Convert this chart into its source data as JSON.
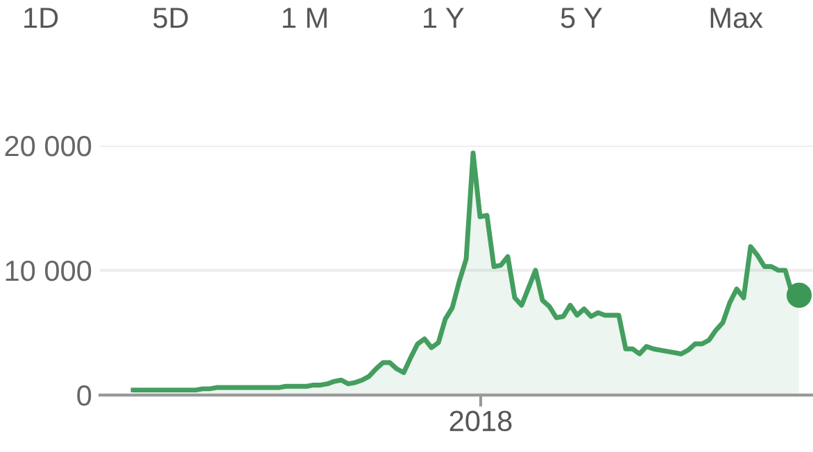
{
  "chart_data": {
    "type": "area",
    "annotations": [
      "1D",
      "5D",
      "1 M",
      "1 Y",
      "5 Y",
      "Max",
      "2018"
    ],
    "categories": [
      null,
      null,
      null,
      null,
      null,
      null,
      null,
      null,
      null,
      null,
      null,
      null,
      null,
      null,
      null,
      null,
      null,
      null,
      null,
      null,
      null,
      null,
      null,
      null,
      null,
      null,
      null,
      null,
      null,
      null,
      null,
      null,
      null,
      null,
      null,
      null,
      null,
      null,
      null,
      null,
      null,
      null,
      null,
      null,
      null,
      null,
      null,
      null,
      null,
      null,
      null,
      null,
      null,
      null,
      null,
      null,
      null,
      null,
      null,
      null,
      null,
      null,
      null,
      null,
      null,
      null,
      null,
      null,
      null,
      null,
      null,
      null,
      null,
      null,
      null,
      null,
      null,
      null,
      null,
      null,
      null,
      null,
      null,
      null,
      null,
      null,
      null,
      null,
      null,
      null,
      null,
      null,
      null,
      null,
      null,
      null,
      null
    ],
    "ylim": [
      0,
      20000
    ],
    "yticks": [
      {
        "value": 0,
        "label": "0"
      },
      {
        "value": 10000,
        "label": "10 000"
      },
      {
        "value": 20000,
        "label": "20 000"
      }
    ],
    "grid": "y",
    "series": [
      {
        "color": "#449e5f",
        "values": [
          400,
          400,
          400,
          400,
          400,
          400,
          400,
          400,
          400,
          400,
          500,
          500,
          600,
          600,
          600,
          600,
          600,
          600,
          600,
          600,
          600,
          600,
          700,
          700,
          700,
          700,
          800,
          800,
          900,
          1100,
          1200,
          900,
          1000,
          1200,
          1500,
          2100,
          2600,
          2600,
          2100,
          1800,
          3000,
          4100,
          4500,
          3800,
          4200,
          6100,
          7000,
          9100,
          10900,
          19400,
          14300,
          14400,
          10300,
          10400,
          11100,
          7800,
          7200,
          8600,
          10000,
          7600,
          7100,
          6200,
          6300,
          7200,
          6400,
          6900,
          6300,
          6600,
          6400,
          6400,
          6400,
          3700,
          3700,
          3300,
          3900,
          3700,
          3600,
          3500,
          3400,
          3300,
          3600,
          4100,
          4100,
          4400,
          5200,
          5800,
          7400,
          8500,
          7800,
          11900,
          11200,
          10300,
          10300,
          10000,
          10000,
          8100,
          8000
        ]
      },
      {
        "type": "scatter",
        "color": "#3d9858",
        "marker": "circle",
        "values": [
          null,
          null,
          null,
          null,
          null,
          null,
          null,
          null,
          null,
          null,
          null,
          null,
          null,
          null,
          null,
          null,
          null,
          null,
          null,
          null,
          null,
          null,
          null,
          null,
          null,
          null,
          null,
          null,
          null,
          null,
          null,
          null,
          null,
          null,
          null,
          null,
          null,
          null,
          null,
          null,
          null,
          null,
          null,
          null,
          null,
          null,
          null,
          null,
          null,
          null,
          null,
          null,
          null,
          null,
          null,
          null,
          null,
          null,
          null,
          null,
          null,
          null,
          null,
          null,
          null,
          null,
          null,
          null,
          null,
          null,
          null,
          null,
          null,
          null,
          null,
          null,
          null,
          null,
          null,
          null,
          null,
          null,
          null,
          null,
          null,
          null,
          null,
          null,
          null,
          null,
          null,
          null,
          null,
          null,
          null,
          null,
          8000
        ]
      }
    ]
  }
}
